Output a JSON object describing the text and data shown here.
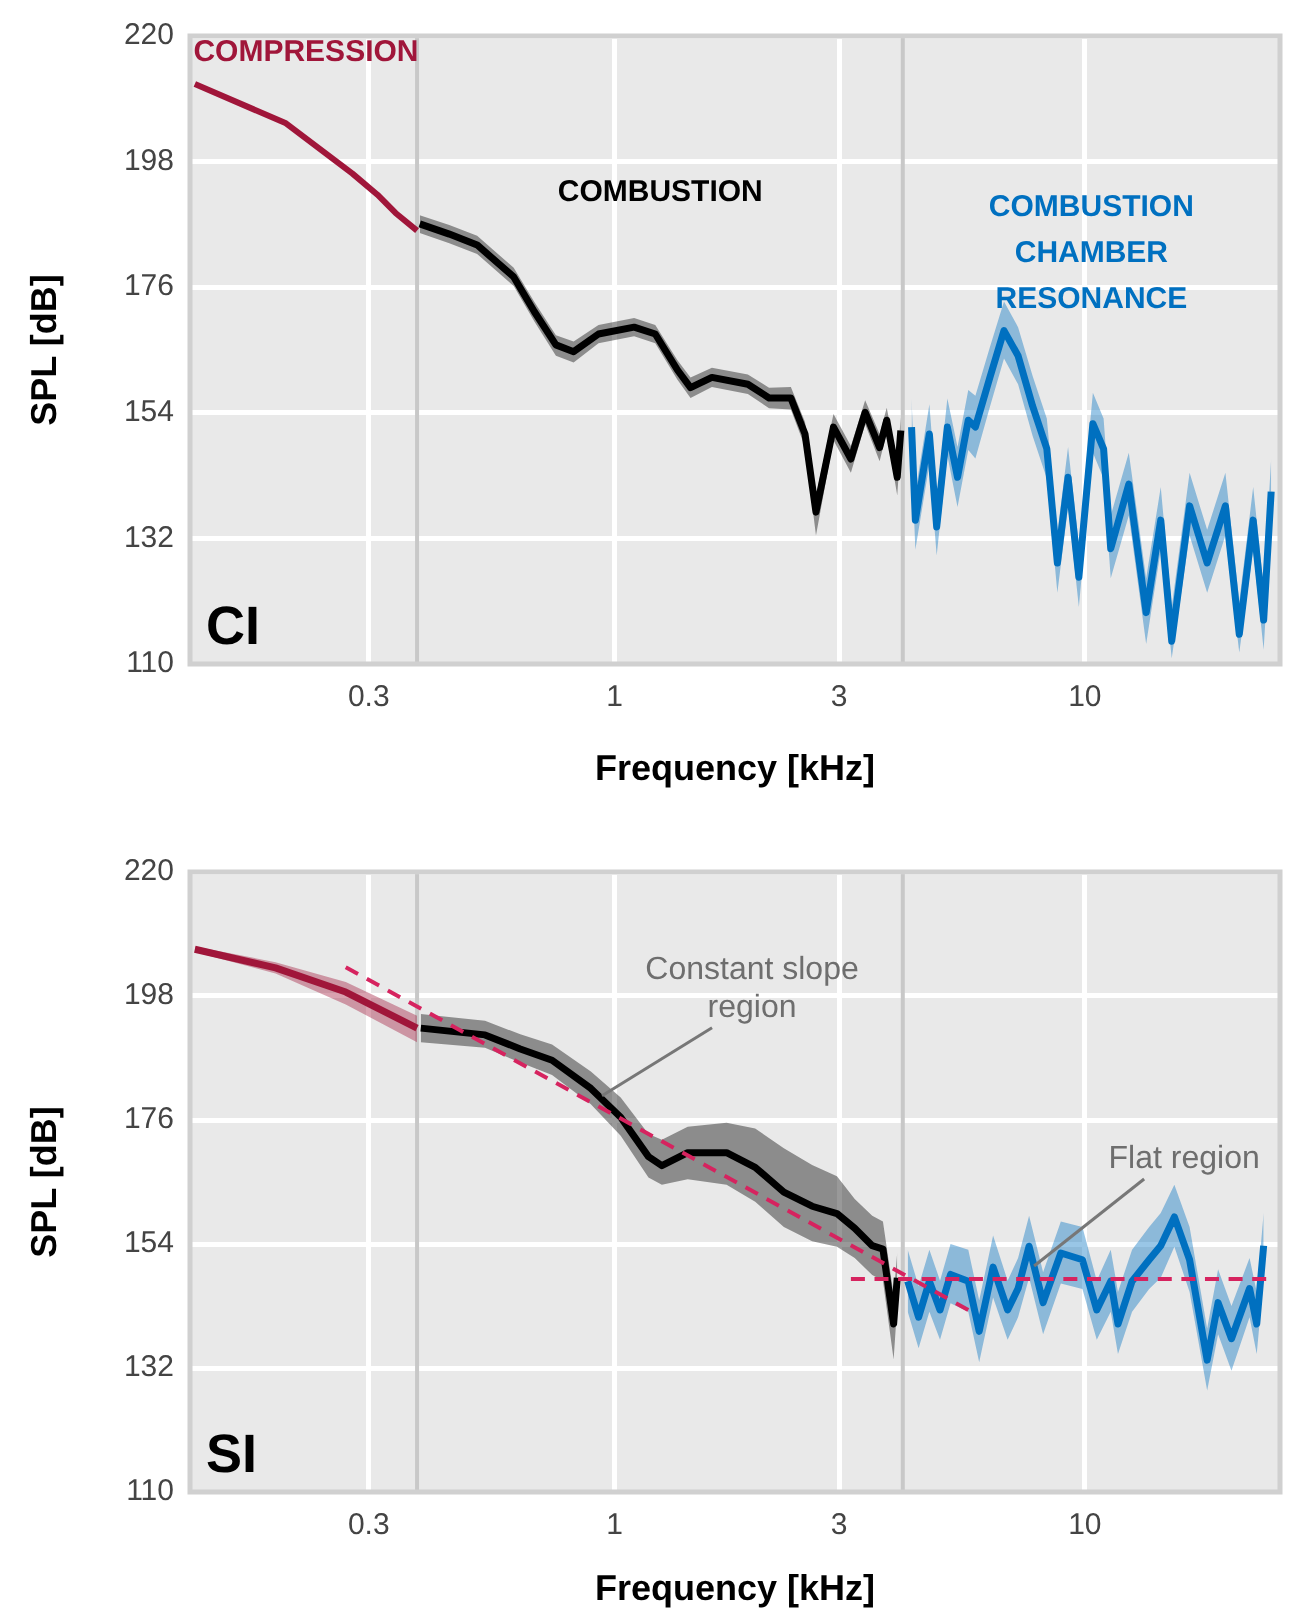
{
  "chart_data": [
    {
      "type": "line",
      "xlabel": "Frequency [kHz]",
      "ylabel": "SPL [dB]",
      "log": "x",
      "xlim": [
        0.125,
        26
      ],
      "xticks": [
        0.3,
        1,
        3,
        10
      ],
      "ylim": [
        110,
        220
      ],
      "yticks": [
        110,
        132,
        154,
        176,
        198,
        220
      ],
      "grid": true,
      "marker": "none",
      "ref_lines": [
        {
          "axis": "x",
          "value": 0.38,
          "color": "#c8c8c8"
        },
        {
          "axis": "x",
          "value": 4.1,
          "color": "#c8c8c8"
        }
      ],
      "annotations": [
        "CI"
      ],
      "series": [
        {
          "name": "COMPRESSION",
          "color": "#a0163a",
          "x": [
            0.128,
            0.2,
            0.277,
            0.313,
            0.342,
            0.38
          ],
          "values": [
            211.6,
            204.7,
            195.9,
            192.2,
            189,
            185.9
          ]
        },
        {
          "name": "COMBUSTION",
          "color": "#000000",
          "x": [
            0.385,
            0.445,
            0.51,
            0.61,
            0.675,
            0.75,
            0.818,
            0.924,
            1.1,
            1.22,
            1.36,
            1.45,
            1.61,
            1.92,
            2.13,
            2.37,
            2.54,
            2.68,
            2.92,
            3.18,
            3.41,
            3.66,
            3.79,
            3.99,
            4.06
          ],
          "values": [
            187.1,
            185.3,
            183.4,
            177.8,
            171.7,
            165.9,
            164.7,
            167.8,
            169,
            167.8,
            161.5,
            158.4,
            160.2,
            159,
            156.6,
            156.6,
            150.3,
            136.6,
            151.5,
            145.9,
            154.1,
            147.9,
            152.7,
            142.7,
            150.9
          ],
          "lower": [
            185.5,
            183.7,
            181.8,
            176.2,
            170,
            164,
            162.8,
            166.2,
            167.4,
            166.2,
            159.8,
            156.6,
            158.5,
            157.3,
            154.8,
            154.6,
            148,
            132.5,
            149.2,
            143.5,
            152,
            145.5,
            150.5,
            139.5,
            148.5
          ],
          "upper": [
            188.6,
            186.9,
            185,
            179.4,
            173.4,
            167.6,
            166.5,
            169.4,
            170.6,
            169.4,
            163.2,
            160.2,
            161.9,
            160.7,
            158.4,
            158.5,
            152.4,
            139.5,
            153.8,
            148.2,
            156.2,
            150.3,
            154.9,
            145.6,
            153.2
          ]
        },
        {
          "name": "COMBUSTION\nCHAMBER\nRESONANCE",
          "color": "#0070c0",
          "x": [
            4.28,
            4.36,
            4.67,
            4.84,
            5.1,
            5.36,
            5.65,
            5.85,
            6.28,
            6.73,
            7.21,
            7.74,
            8.3,
            8.74,
            9.21,
            9.71,
            10.4,
            10.96,
            11.35,
            12.4,
            13.5,
            14.5,
            15.3,
            16.7,
            18.2,
            19.9,
            21.3,
            22.8,
            24,
            24.9
          ],
          "values": [
            151.5,
            135.2,
            150.3,
            134,
            151.5,
            142.7,
            152.7,
            151.5,
            160.2,
            168.4,
            164,
            155.2,
            147.7,
            127.7,
            142.7,
            125.2,
            152.1,
            147.7,
            130.2,
            141.5,
            119,
            135.2,
            114,
            137.7,
            127.7,
            137.7,
            115.2,
            135.2,
            117.7,
            140.2
          ],
          "lower": [
            146.5,
            130,
            145,
            129,
            146.5,
            137.5,
            147.5,
            146,
            155,
            163.5,
            159,
            150,
            142.5,
            122.5,
            137.5,
            120,
            147,
            142.5,
            125,
            136,
            113.5,
            130,
            111,
            132.5,
            122.5,
            132.5,
            112,
            130,
            112.5,
            135
          ],
          "upper": [
            156.5,
            140,
            155.5,
            139,
            156.5,
            148,
            158,
            157,
            165.5,
            173.5,
            169,
            160.5,
            153,
            133,
            148,
            131,
            157.5,
            153,
            136,
            147,
            125,
            141,
            120,
            143.5,
            133.5,
            143.5,
            121,
            141,
            123.5,
            146
          ]
        }
      ]
    },
    {
      "type": "line",
      "xlabel": "Frequency [kHz]",
      "ylabel": "SPL [dB]",
      "log": "x",
      "xlim": [
        0.125,
        26
      ],
      "xticks": [
        0.3,
        1,
        3,
        10
      ],
      "ylim": [
        110,
        220
      ],
      "yticks": [
        110,
        132,
        154,
        176,
        198,
        220
      ],
      "grid": true,
      "marker": "none",
      "ref_lines": [
        {
          "axis": "x",
          "value": 0.38,
          "color": "#c8c8c8"
        },
        {
          "axis": "x",
          "value": 4.1,
          "color": "#c8c8c8"
        }
      ],
      "annotations": [
        "SI",
        {
          "text": "Constant slope\nregion",
          "x": 0.94,
          "y": 180.3
        },
        {
          "text": "Flat region",
          "x": 7.8,
          "y": 150.1
        }
      ],
      "series": [
        {
          "color": "#a0163a",
          "x": [
            0.128,
            0.19,
            0.268,
            0.38
          ],
          "values": [
            206.3,
            203,
            198.7,
            192.3
          ],
          "lower": [
            205.8,
            202,
            196.5,
            189.8
          ],
          "upper": [
            206.8,
            204,
            200.5,
            194.5
          ]
        },
        {
          "color": "#000000",
          "x": [
            0.387,
            0.53,
            0.63,
            0.736,
            0.89,
            1.03,
            1.18,
            1.26,
            1.43,
            1.73,
            1.99,
            2.29,
            2.63,
            2.97,
            3.24,
            3.53,
            3.72,
            3.92,
            3.99
          ],
          "values": [
            192.3,
            191.1,
            188.6,
            186.6,
            181.6,
            176.5,
            169.5,
            167.9,
            170.2,
            170.2,
            167.6,
            163.2,
            160.7,
            159.4,
            156.8,
            153.7,
            153.1,
            139.8,
            148
          ],
          "lower": [
            189.8,
            188.8,
            186.2,
            184,
            178.8,
            173.2,
            165.8,
            164.5,
            165.5,
            164.5,
            161.5,
            157,
            154.5,
            153.5,
            151.5,
            148.5,
            147.5,
            133.5,
            143
          ],
          "upper": [
            194.8,
            193.6,
            191.2,
            189.4,
            184.6,
            180,
            173.5,
            172.5,
            174.8,
            175.5,
            174.5,
            171,
            168,
            166,
            162,
            159,
            158,
            145,
            152.5
          ]
        },
        {
          "color": "#0070c0",
          "x": [
            4.2,
            4.43,
            4.67,
            4.92,
            5.18,
            5.65,
            5.96,
            6.38,
            6.85,
            7.21,
            7.61,
            8.15,
            8.89,
            9.88,
            10.6,
            11.35,
            11.76,
            12.6,
            13.7,
            14.5,
            15.5,
            16.7,
            18.2,
            19.2,
            20.5,
            22.4,
            23.2,
            24
          ],
          "values": [
            147.4,
            141,
            147.4,
            142.3,
            148.6,
            147.4,
            138.5,
            149.9,
            142.3,
            146.1,
            153.6,
            143.6,
            152.4,
            151.2,
            142.3,
            147.4,
            139.8,
            147.4,
            151.2,
            153.7,
            158.8,
            151.2,
            133.4,
            143.6,
            137.2,
            146.1,
            139.8,
            153.7
          ],
          "lower": [
            142,
            135.5,
            142,
            137,
            143.5,
            142,
            133,
            144.5,
            137,
            141,
            148,
            138,
            147,
            146,
            137,
            142,
            134.5,
            142,
            146,
            148,
            153.5,
            145.5,
            128,
            138,
            131.5,
            141,
            134.5,
            148
          ],
          "upper": [
            153,
            146.5,
            153,
            147.5,
            154,
            153,
            144,
            155.5,
            147.5,
            151.5,
            159,
            149,
            158,
            157,
            147.5,
            153,
            145.5,
            153,
            157,
            159.5,
            164.5,
            157,
            139,
            149.5,
            143,
            151.5,
            145.5,
            159.5
          ]
        },
        {
          "type": "line",
          "line_style": "dashed",
          "color": "#d6235f",
          "x": [
            0.268,
            5.65
          ],
          "values": [
            203.1,
            142.3
          ]
        },
        {
          "type": "line",
          "line_style": "dashed",
          "color": "#d6235f",
          "x": [
            3.18,
            24.3
          ],
          "values": [
            147.8,
            147.8
          ]
        }
      ]
    }
  ]
}
